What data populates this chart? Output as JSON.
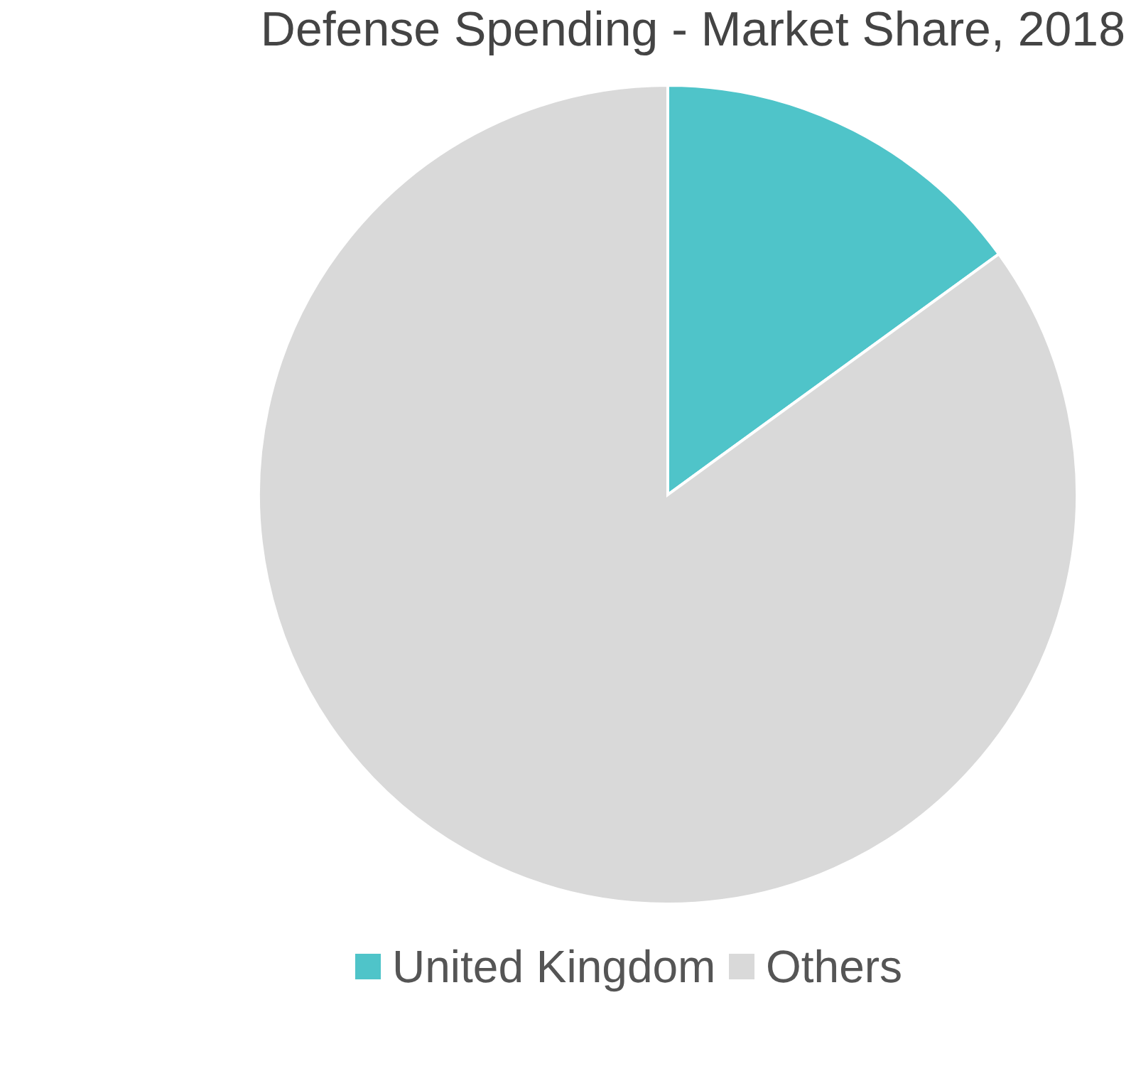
{
  "chart_data": {
    "type": "pie",
    "title": "Defense Spending - Market Share, 2018",
    "categories": [
      "United Kingdom",
      "Others"
    ],
    "values": [
      15,
      85
    ],
    "colors": [
      "#4fc4c9",
      "#d9d9d9"
    ],
    "legend": "bottom"
  }
}
